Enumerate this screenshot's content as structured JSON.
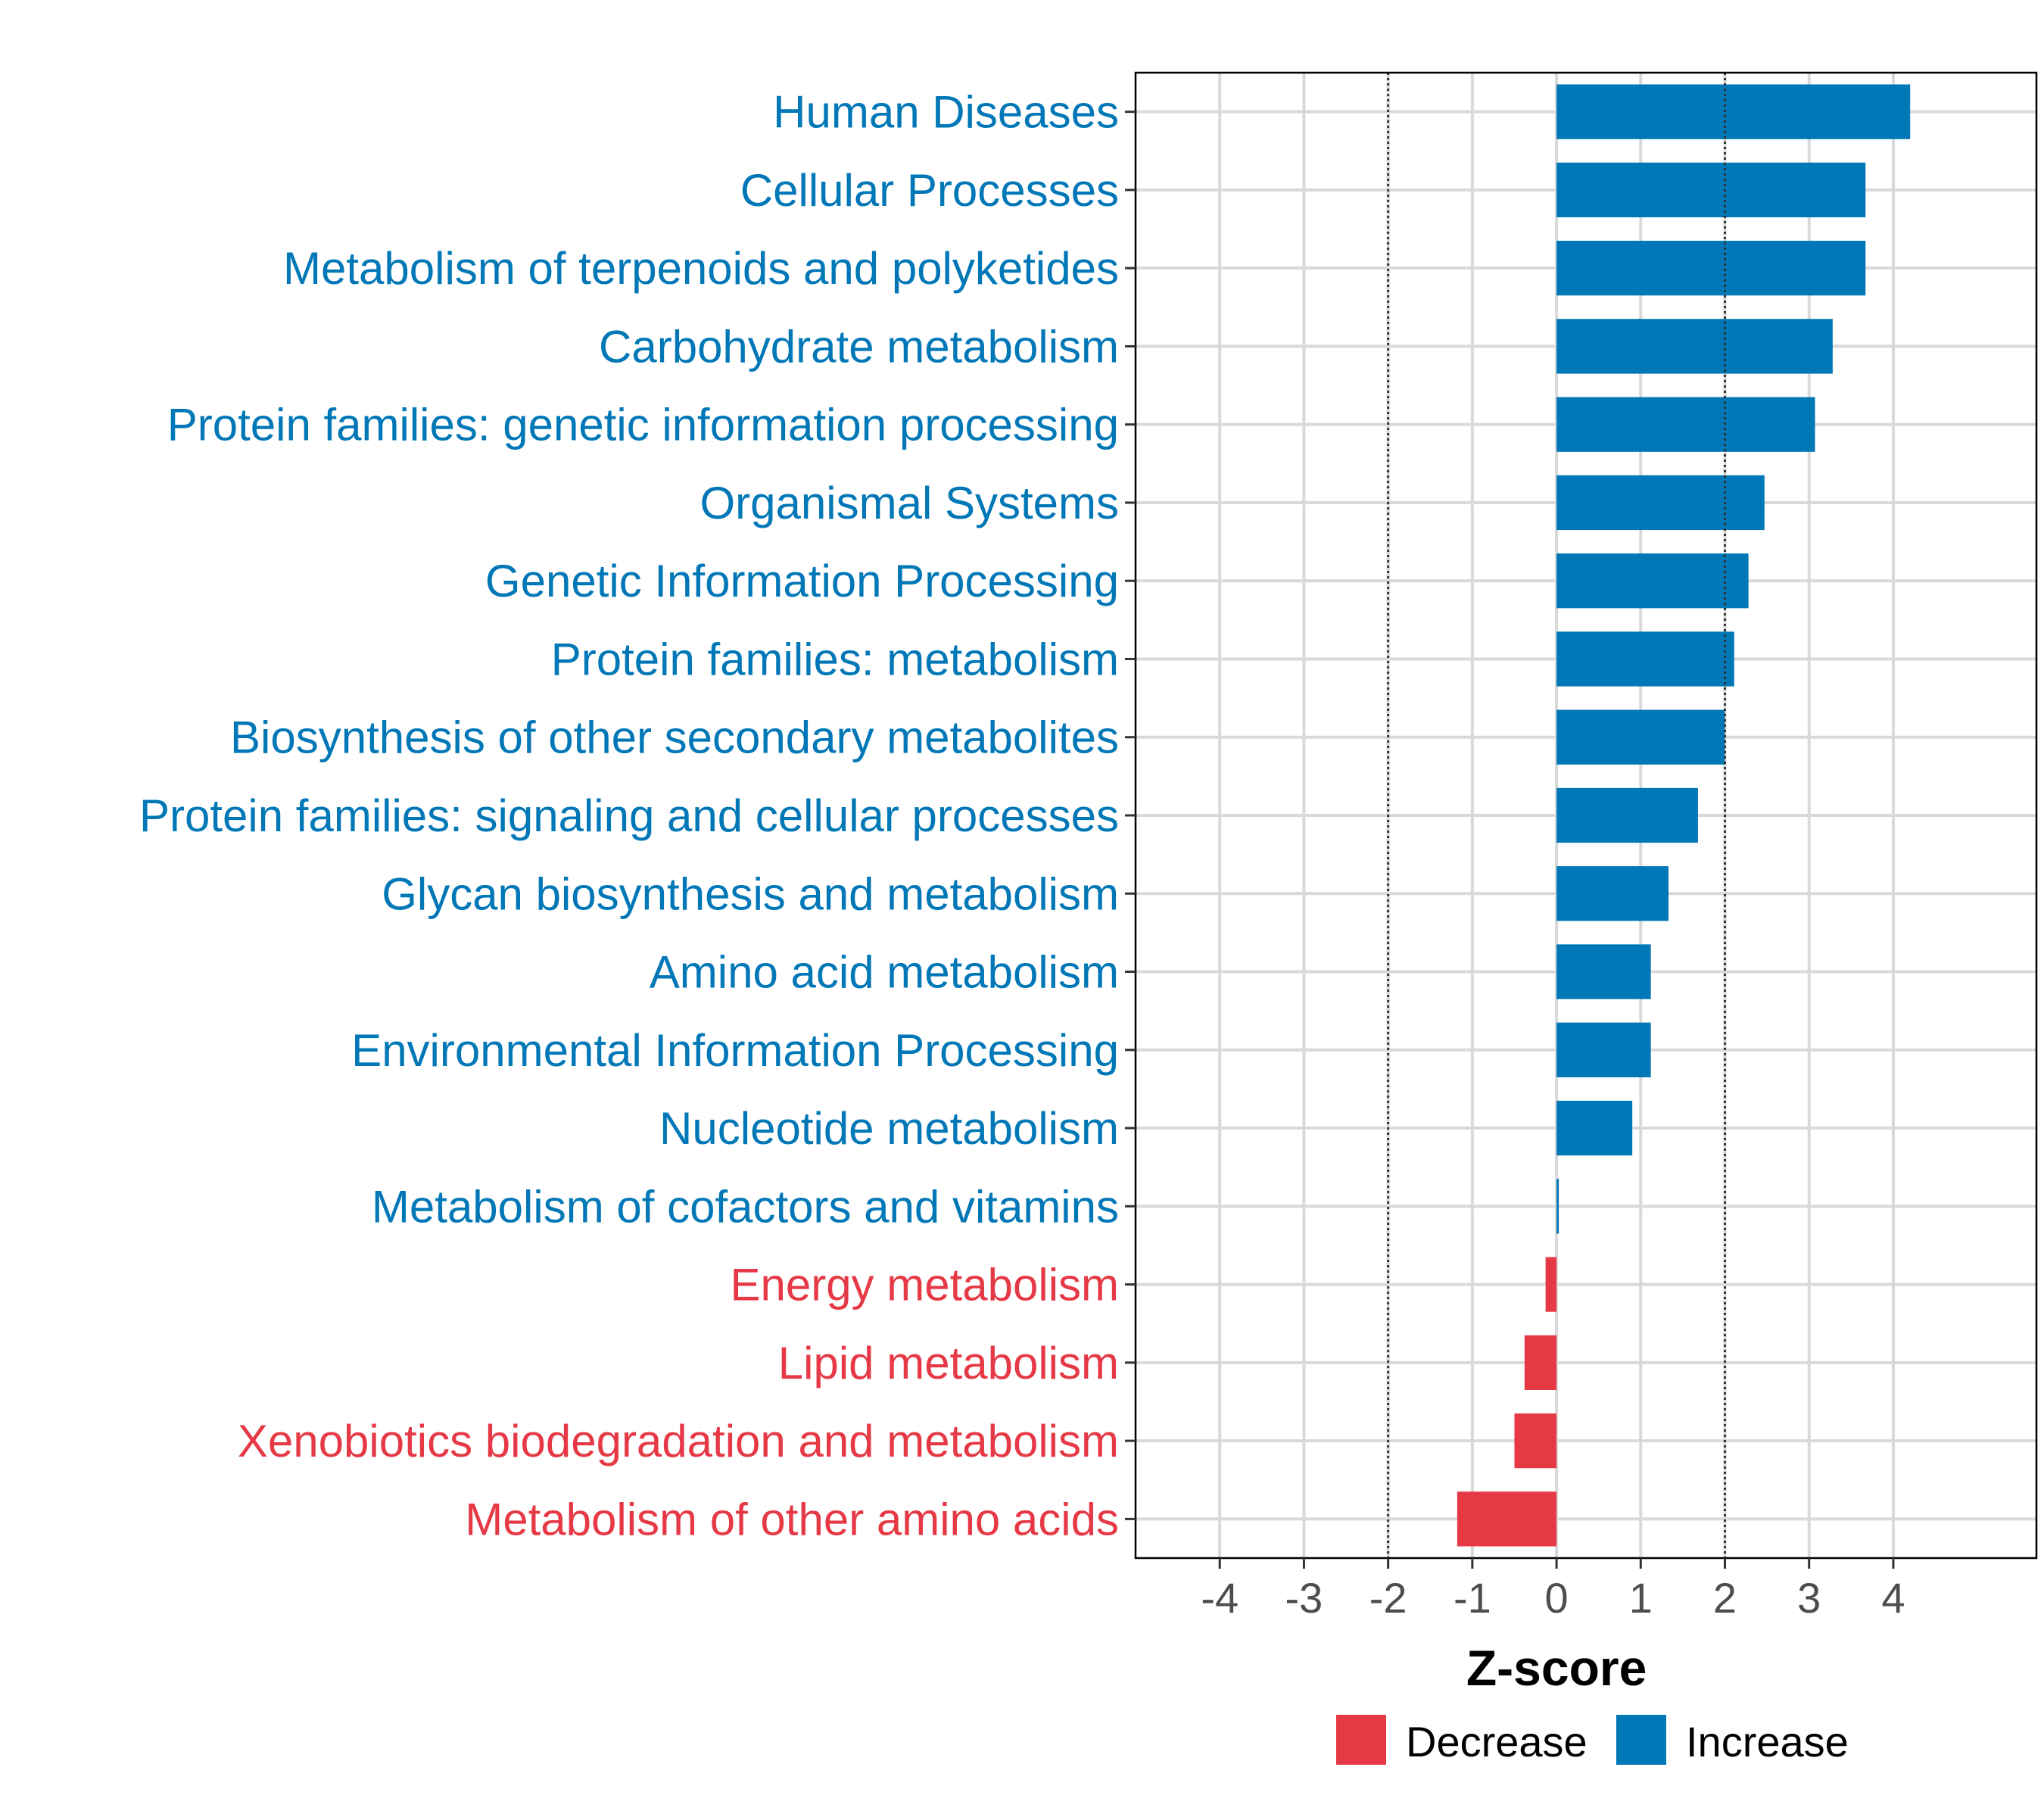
{
  "chart_data": {
    "type": "bar",
    "orientation": "horizontal",
    "title": "",
    "xlabel": "Z-score",
    "ylabel": "",
    "xlim": [
      -5,
      5.7
    ],
    "xticks": [
      -4,
      -3,
      -2,
      -1,
      0,
      1,
      2,
      3,
      4
    ],
    "xtick_labels": [
      "-4",
      "-3",
      "-2",
      "-1",
      "0",
      "1",
      "2",
      "3",
      "4"
    ],
    "reference_lines": [
      -2,
      2
    ],
    "grid": true,
    "legend_position": "bottom",
    "categories": [
      "Human Diseases",
      "Cellular Processes",
      "Metabolism of terpenoids and polyketides",
      "Carbohydrate metabolism",
      "Protein families: genetic information processing",
      "Organismal Systems",
      "Genetic Information Processing",
      "Protein families: metabolism",
      "Biosynthesis of other secondary metabolites",
      "Protein families: signaling and cellular processes",
      "Glycan biosynthesis and metabolism",
      "Amino acid metabolism",
      "Environmental Information Processing",
      "Nucleotide metabolism",
      "Metabolism of cofactors and vitamins",
      "Energy metabolism",
      "Lipid metabolism",
      "Xenobiotics biodegradation and metabolism",
      "Metabolism of other amino acids"
    ],
    "values": [
      4.2,
      3.67,
      3.67,
      3.28,
      3.07,
      2.47,
      2.28,
      2.11,
      2.0,
      1.68,
      1.33,
      1.12,
      1.12,
      0.9,
      0.02,
      -0.13,
      -0.38,
      -0.5,
      -1.18
    ],
    "groups": [
      "Increase",
      "Increase",
      "Increase",
      "Increase",
      "Increase",
      "Increase",
      "Increase",
      "Increase",
      "Increase",
      "Increase",
      "Increase",
      "Increase",
      "Increase",
      "Increase",
      "Increase",
      "Decrease",
      "Decrease",
      "Decrease",
      "Decrease"
    ],
    "legend": [
      {
        "name": "Decrease",
        "color": "#E63946"
      },
      {
        "name": "Increase",
        "color": "#0077B6"
      }
    ]
  }
}
